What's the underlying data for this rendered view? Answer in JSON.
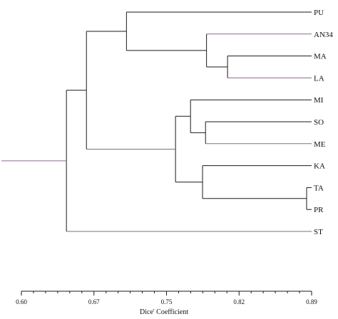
{
  "chart_data": {
    "type": "dendrogram",
    "xlabel": "Dice' Coefficient",
    "xlim": [
      0.6,
      0.89
    ],
    "ticks": [
      "0.60",
      "0.67",
      "0.75",
      "0.82",
      "0.89"
    ],
    "leaves": [
      "PU",
      "AN34",
      "MA",
      "LA",
      "MI",
      "SO",
      "ME",
      "KA",
      "TA",
      "PR",
      "ST"
    ],
    "merges": [
      {
        "id": "n1",
        "a": "MA",
        "b": "LA",
        "similarity": 0.806
      },
      {
        "id": "n2",
        "a": "AN34",
        "b": "n1",
        "similarity": 0.785
      },
      {
        "id": "n3",
        "a": "PU",
        "b": "n2",
        "similarity": 0.705
      },
      {
        "id": "n4",
        "a": "SO",
        "b": "ME",
        "similarity": 0.784
      },
      {
        "id": "n5",
        "a": "MI",
        "b": "n4",
        "similarity": 0.769
      },
      {
        "id": "n6",
        "a": "TA",
        "b": "PR",
        "similarity": 0.885
      },
      {
        "id": "n7",
        "a": "KA",
        "b": "n6",
        "similarity": 0.781
      },
      {
        "id": "n8",
        "a": "n5",
        "b": "n7",
        "similarity": 0.754
      },
      {
        "id": "n9",
        "a": "n3",
        "b": "n8",
        "similarity": 0.665
      },
      {
        "id": "n10",
        "a": "n9",
        "b": "ST",
        "similarity": 0.645
      }
    ],
    "colors": {
      "dark": "#1a1a1a",
      "light": "#8a6a8a"
    }
  }
}
